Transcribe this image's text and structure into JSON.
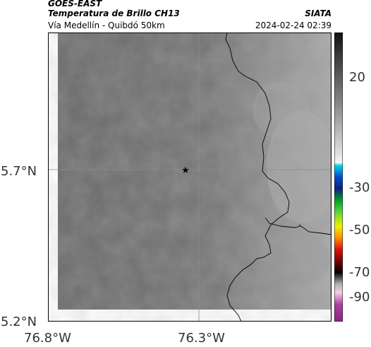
{
  "header": {
    "satellite": "GOES-EAST",
    "product": "Temperatura de Brillo CH13",
    "route": "Vía Medellín - Quibdó 50km",
    "agency": "SIATA",
    "datetime": "2024-02-24 02:39"
  },
  "map": {
    "lat_labels": [
      "5.7°N",
      "5.2°N"
    ],
    "lon_labels": [
      "76.8°W",
      "76.3°W"
    ],
    "marker": "star-icon"
  },
  "colorbar": {
    "ticks": [
      "20",
      "-30",
      "-50",
      "-70",
      "-90"
    ],
    "range": [
      -90,
      40
    ]
  },
  "colors": {
    "land_gray": "#6d6d6d",
    "border": "#000000"
  }
}
